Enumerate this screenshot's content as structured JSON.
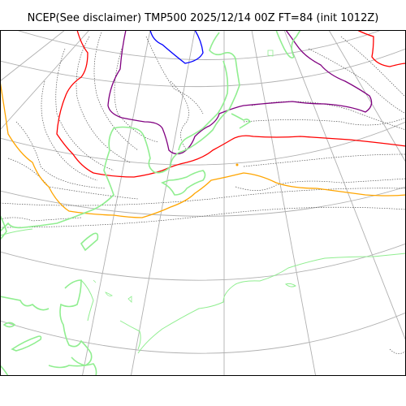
{
  "title": "NCEP(See disclaimer) TMP500 2025/12/14 00Z FT=84 (init 1012Z)",
  "colors": {
    "background": "#ffffff",
    "frame": "#000000",
    "graticule": "#b0b0b0",
    "coastline": "#90ee90",
    "isotherm_dotted": "#555555",
    "isotherm_blue": "#0000ff",
    "isotherm_purple": "#800080",
    "isotherm_red": "#ff0000",
    "isotherm_orange": "#ffa500"
  }
}
